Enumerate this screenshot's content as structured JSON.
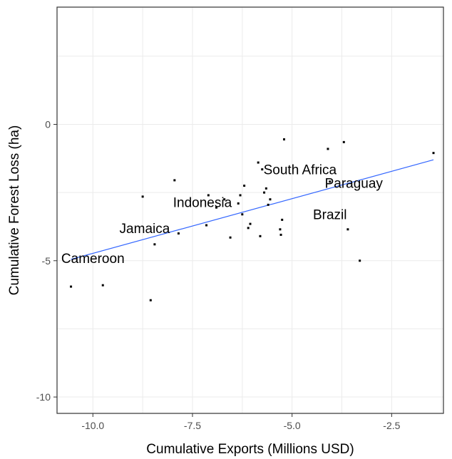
{
  "chart_data": {
    "type": "scatter",
    "xlabel": "Cumulative Exports (Millions USD)",
    "ylabel": "Cumulative Forest Loss (ha)",
    "xlim": [
      -10.9,
      -1.2
    ],
    "ylim": [
      -10.6,
      4.3
    ],
    "x_ticks": [
      -10.0,
      -7.5,
      -5.0,
      -2.5
    ],
    "x_tick_labels": [
      "-10.0",
      "-7.5",
      "-5.0",
      "-2.5"
    ],
    "y_ticks": [
      -10,
      -5,
      0
    ],
    "y_tick_labels": [
      "-10",
      "-5",
      "0"
    ],
    "grid": true,
    "legend": "none",
    "points": [
      {
        "x": -10.55,
        "y": -5.95
      },
      {
        "x": -9.75,
        "y": -5.9
      },
      {
        "x": -8.75,
        "y": -2.65
      },
      {
        "x": -8.55,
        "y": -6.45
      },
      {
        "x": -8.45,
        "y": -4.4
      },
      {
        "x": -7.95,
        "y": -2.05
      },
      {
        "x": -7.85,
        "y": -4.0
      },
      {
        "x": -7.15,
        "y": -3.7
      },
      {
        "x": -7.1,
        "y": -2.6
      },
      {
        "x": -6.9,
        "y": -3.05
      },
      {
        "x": -6.7,
        "y": -2.75
      },
      {
        "x": -6.55,
        "y": -4.15
      },
      {
        "x": -6.35,
        "y": -2.9
      },
      {
        "x": -6.3,
        "y": -2.6
      },
      {
        "x": -6.25,
        "y": -3.3
      },
      {
        "x": -6.2,
        "y": -2.25
      },
      {
        "x": -6.1,
        "y": -3.8
      },
      {
        "x": -6.05,
        "y": -3.65
      },
      {
        "x": -5.85,
        "y": -1.4
      },
      {
        "x": -5.8,
        "y": -4.1
      },
      {
        "x": -5.75,
        "y": -1.65
      },
      {
        "x": -5.7,
        "y": -2.5
      },
      {
        "x": -5.65,
        "y": -2.35
      },
      {
        "x": -5.6,
        "y": -2.95
      },
      {
        "x": -5.55,
        "y": -2.75
      },
      {
        "x": -5.3,
        "y": -3.85
      },
      {
        "x": -5.28,
        "y": -4.05
      },
      {
        "x": -5.25,
        "y": -3.5
      },
      {
        "x": -5.2,
        "y": -0.55
      },
      {
        "x": -4.1,
        "y": -0.9
      },
      {
        "x": -4.05,
        "y": -2.1
      },
      {
        "x": -3.7,
        "y": -0.65
      },
      {
        "x": -3.6,
        "y": -3.85
      },
      {
        "x": -3.3,
        "y": -5.0
      },
      {
        "x": -1.45,
        "y": -1.05
      }
    ],
    "labels": [
      {
        "text": "Cameroon",
        "x": -10.0,
        "y": -4.95
      },
      {
        "text": "Jamaica",
        "x": -8.7,
        "y": -3.85
      },
      {
        "text": "Indonesia",
        "x": -7.25,
        "y": -2.9
      },
      {
        "text": "South Africa",
        "x": -4.8,
        "y": -1.7
      },
      {
        "text": "Paraguay",
        "x": -3.45,
        "y": -2.2
      },
      {
        "text": "Brazil",
        "x": -4.05,
        "y": -3.35
      }
    ],
    "trend_line": {
      "x": [
        -10.55,
        -1.45
      ],
      "y": [
        -4.95,
        -1.3
      ]
    },
    "colors": {
      "point": "#000000",
      "trend": "#3366ff",
      "grid": "#ebebeb",
      "panel_border": "#333333",
      "background": "#ffffff"
    }
  }
}
